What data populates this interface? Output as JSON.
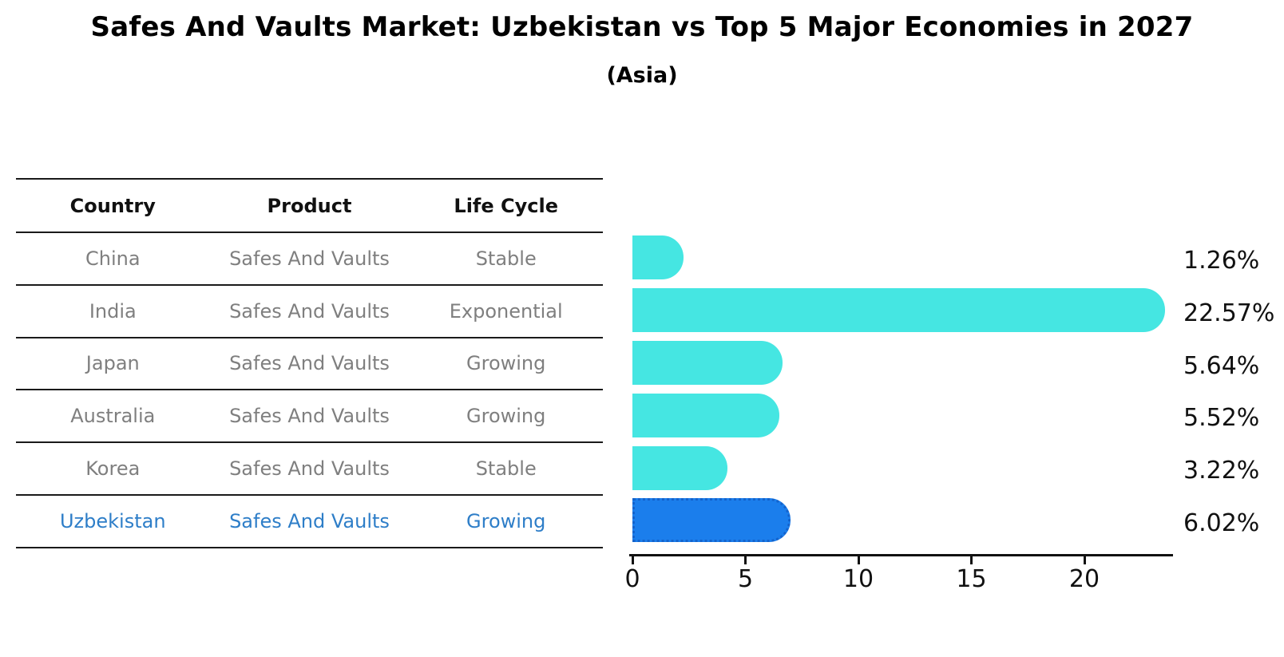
{
  "title": "Safes And Vaults Market: Uzbekistan vs Top 5 Major Economies in 2027",
  "subtitle": "(Asia)",
  "table": {
    "columns": [
      "Country",
      "Product",
      "Life Cycle"
    ],
    "rows": [
      {
        "country": "China",
        "product": "Safes And Vaults",
        "life_cycle": "Stable",
        "value": 1.26,
        "value_label": "1.26%",
        "highlight": false
      },
      {
        "country": "India",
        "product": "Safes And Vaults",
        "life_cycle": "Exponential",
        "value": 22.57,
        "value_label": "22.57%",
        "highlight": false
      },
      {
        "country": "Japan",
        "product": "Safes And Vaults",
        "life_cycle": "Growing",
        "value": 5.64,
        "value_label": "5.64%",
        "highlight": false
      },
      {
        "country": "Australia",
        "product": "Safes And Vaults",
        "life_cycle": "Growing",
        "value": 5.52,
        "value_label": "5.52%",
        "highlight": false
      },
      {
        "country": "Korea",
        "product": "Safes And Vaults",
        "life_cycle": "Stable",
        "value": 3.22,
        "value_label": "3.22%",
        "highlight": false
      },
      {
        "country": "Uzbekistan",
        "product": "Safes And Vaults",
        "life_cycle": "Growing",
        "value": 6.02,
        "value_label": "6.02%",
        "highlight": true
      }
    ]
  },
  "chart_data": {
    "type": "bar",
    "orientation": "horizontal",
    "title": "Safes And Vaults Market: Uzbekistan vs Top 5 Major Economies in 2027",
    "subtitle": "(Asia)",
    "categories": [
      "China",
      "India",
      "Japan",
      "Australia",
      "Korea",
      "Uzbekistan"
    ],
    "values": [
      1.26,
      22.57,
      5.64,
      5.52,
      3.22,
      6.02
    ],
    "value_labels": [
      "1.26%",
      "22.57%",
      "5.64%",
      "5.52%",
      "3.22%",
      "6.02%"
    ],
    "xlabel": "",
    "ylabel": "",
    "xlim": [
      0,
      23.5
    ],
    "x_ticks": [
      0,
      5,
      10,
      15,
      20
    ],
    "grid": false,
    "legend": false,
    "highlight_index": 5
  },
  "colors": {
    "bar": "#45E6E2",
    "highlight_bar": "#1B7EEC",
    "highlight_bar_border": "#1463CC",
    "highlight_text": "#2E7EC8",
    "table_text": "#7f7f7f",
    "header_text": "#111111",
    "axis": "#111111"
  }
}
